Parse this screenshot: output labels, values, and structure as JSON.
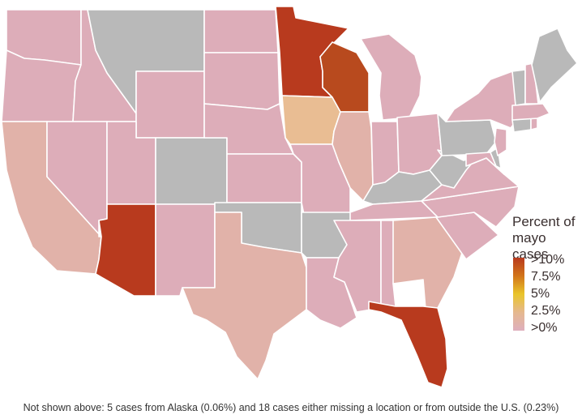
{
  "legend": {
    "title": "Percent of mayo cases",
    "ticks": [
      ">10%",
      "7.5%",
      "5%",
      "2.5%",
      ">0%"
    ],
    "gradient": [
      "#b83a1e",
      "#d2751a",
      "#e9c52a",
      "#e5b88f",
      "#deafbe"
    ]
  },
  "footnote": "Not shown above: 5 cases from Alaska (0.06%) and 18 cases either missing a location or from outside the U.S. (0.23%)",
  "colors": {
    "no_data": "#b9b9b9",
    "low": "#ddadb9",
    "low_orange": "#e1b2a9",
    "mid": "#e9bd93",
    "high": "#b83a1e",
    "high_wi": "#b84a1e"
  },
  "states": [
    {
      "abbr": "WA",
      "tier": "low"
    },
    {
      "abbr": "OR",
      "tier": "low"
    },
    {
      "abbr": "CA",
      "tier": "low_orange"
    },
    {
      "abbr": "ID",
      "tier": "low"
    },
    {
      "abbr": "NV",
      "tier": "low"
    },
    {
      "abbr": "MT",
      "tier": "no_data"
    },
    {
      "abbr": "WY",
      "tier": "low"
    },
    {
      "abbr": "UT",
      "tier": "low"
    },
    {
      "abbr": "AZ",
      "tier": "high"
    },
    {
      "abbr": "CO",
      "tier": "no_data"
    },
    {
      "abbr": "NM",
      "tier": "low"
    },
    {
      "abbr": "ND",
      "tier": "low"
    },
    {
      "abbr": "SD",
      "tier": "low"
    },
    {
      "abbr": "NE",
      "tier": "low"
    },
    {
      "abbr": "KS",
      "tier": "low"
    },
    {
      "abbr": "OK",
      "tier": "no_data"
    },
    {
      "abbr": "TX",
      "tier": "low_orange"
    },
    {
      "abbr": "MN",
      "tier": "high"
    },
    {
      "abbr": "IA",
      "tier": "mid"
    },
    {
      "abbr": "MO",
      "tier": "low"
    },
    {
      "abbr": "AR",
      "tier": "no_data"
    },
    {
      "abbr": "LA",
      "tier": "low"
    },
    {
      "abbr": "WI",
      "tier": "high_wi"
    },
    {
      "abbr": "IL",
      "tier": "low_orange"
    },
    {
      "abbr": "MI",
      "tier": "low"
    },
    {
      "abbr": "IN",
      "tier": "low"
    },
    {
      "abbr": "OH",
      "tier": "low"
    },
    {
      "abbr": "KY",
      "tier": "no_data"
    },
    {
      "abbr": "TN",
      "tier": "low"
    },
    {
      "abbr": "MS",
      "tier": "low"
    },
    {
      "abbr": "AL",
      "tier": "low"
    },
    {
      "abbr": "GA",
      "tier": "low_orange"
    },
    {
      "abbr": "FL",
      "tier": "high"
    },
    {
      "abbr": "SC",
      "tier": "low"
    },
    {
      "abbr": "NC",
      "tier": "low"
    },
    {
      "abbr": "VA",
      "tier": "low"
    },
    {
      "abbr": "WV",
      "tier": "no_data"
    },
    {
      "abbr": "PA",
      "tier": "no_data"
    },
    {
      "abbr": "NY",
      "tier": "low"
    },
    {
      "abbr": "MD",
      "tier": "low"
    },
    {
      "abbr": "DE",
      "tier": "no_data"
    },
    {
      "abbr": "NJ",
      "tier": "low"
    },
    {
      "abbr": "CT",
      "tier": "no_data"
    },
    {
      "abbr": "RI",
      "tier": "low"
    },
    {
      "abbr": "MA",
      "tier": "low"
    },
    {
      "abbr": "VT",
      "tier": "no_data"
    },
    {
      "abbr": "NH",
      "tier": "low"
    },
    {
      "abbr": "ME",
      "tier": "no_data"
    }
  ]
}
